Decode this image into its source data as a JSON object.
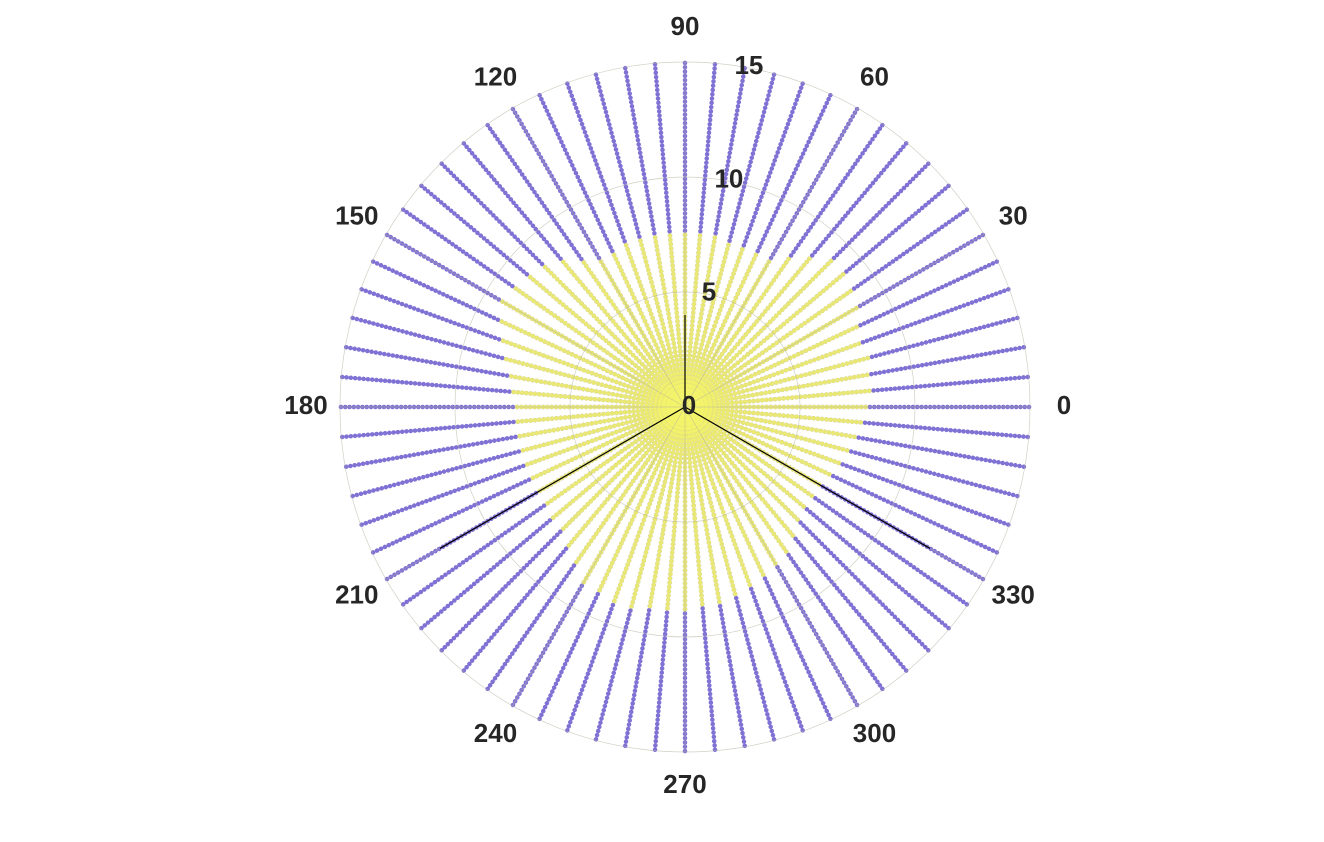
{
  "chart_data": {
    "type": "polar-scatter",
    "theta": [
      0,
      5,
      10,
      15,
      20,
      25,
      30,
      35,
      40,
      45,
      50,
      55,
      60,
      65,
      70,
      75,
      80,
      85,
      90,
      95,
      100,
      105,
      110,
      115,
      120,
      125,
      130,
      135,
      140,
      145,
      150,
      155,
      160,
      165,
      170,
      175,
      180,
      185,
      190,
      195,
      200,
      205,
      210,
      215,
      220,
      225,
      230,
      235,
      240,
      245,
      250,
      255,
      260,
      265,
      270,
      275,
      280,
      285,
      290,
      295,
      300,
      305,
      310,
      315,
      320,
      325,
      330,
      335,
      340,
      345,
      350,
      355
    ],
    "series": [
      {
        "color": "#6a5acd",
        "values": [
          15,
          15,
          15,
          15,
          15,
          15,
          15,
          15,
          15,
          15,
          15,
          15,
          15,
          15,
          15,
          15,
          15,
          15,
          15,
          15,
          15,
          15,
          15,
          15,
          15,
          15,
          15,
          15,
          15,
          15,
          15,
          15,
          15,
          15,
          15,
          15,
          15,
          15,
          15,
          15,
          15,
          15,
          15,
          15,
          15,
          15,
          15,
          15,
          15,
          15,
          15,
          15,
          15,
          15,
          15,
          15,
          15,
          15,
          15,
          15,
          15,
          15,
          15,
          15,
          15,
          15,
          15,
          15,
          15,
          15,
          15,
          15
        ]
      },
      {
        "color": "#f5f56a",
        "values": [
          8.0,
          8.1,
          8.2,
          8.3,
          8.1,
          8.4,
          8.7,
          8.9,
          9.0,
          9.0,
          8.5,
          7.9,
          7.4,
          7.4,
          7.4,
          7.4,
          7.5,
          7.5,
          7.6,
          7.5,
          7.5,
          7.5,
          7.5,
          7.4,
          7.4,
          7.8,
          8.3,
          8.7,
          8.9,
          9.1,
          9.3,
          8.9,
          8.5,
          8.1,
          7.8,
          7.6,
          7.4,
          7.4,
          7.4,
          7.4,
          7.4,
          7.3,
          7.3,
          7.4,
          7.5,
          7.6,
          8.0,
          8.4,
          8.8,
          8.9,
          9.0,
          9.0,
          8.9,
          8.9,
          8.8,
          8.7,
          8.7,
          8.6,
          8.4,
          8.2,
          8.0,
          7.7,
          7.3,
          7.0,
          6.9,
          6.9,
          6.9,
          7.0,
          7.2,
          7.3,
          7.6,
          7.8
        ]
      }
    ],
    "spokes": {
      "color": "#000000",
      "theta": [
        90,
        210,
        330
      ],
      "r": [
        4,
        12.3,
        12.3
      ]
    },
    "rlim": [
      0,
      15
    ],
    "rticks": [
      0,
      5,
      10,
      15
    ],
    "thetaticks": [
      0,
      30,
      60,
      90,
      120,
      150,
      180,
      210,
      240,
      270,
      300,
      330
    ],
    "grid": true
  }
}
